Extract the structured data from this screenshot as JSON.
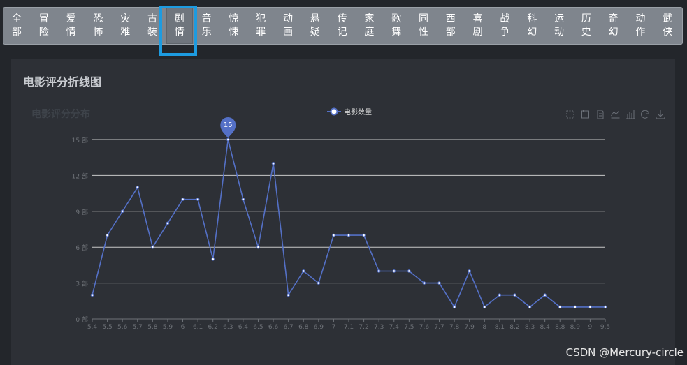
{
  "genres": [
    {
      "label": "全部"
    },
    {
      "label": "冒险"
    },
    {
      "label": "爱情"
    },
    {
      "label": "恐怖"
    },
    {
      "label": "灾难"
    },
    {
      "label": "古装"
    },
    {
      "label": "剧情",
      "active": true
    },
    {
      "label": "音乐"
    },
    {
      "label": "惊悚"
    },
    {
      "label": "犯罪"
    },
    {
      "label": "动画"
    },
    {
      "label": "悬疑"
    },
    {
      "label": "传记"
    },
    {
      "label": "家庭"
    },
    {
      "label": "歌舞"
    },
    {
      "label": "同性"
    },
    {
      "label": "西部"
    },
    {
      "label": "喜剧"
    },
    {
      "label": "战争"
    },
    {
      "label": "科幻"
    },
    {
      "label": "运动"
    },
    {
      "label": "历史"
    },
    {
      "label": "奇幻"
    },
    {
      "label": "动作"
    },
    {
      "label": "武侠"
    }
  ],
  "panel": {
    "title": "电影评分折线图"
  },
  "chart_data": {
    "type": "line",
    "title": "电影评分分布",
    "legend": {
      "label": "电影数量",
      "position": "top-center"
    },
    "x": [
      "5.4",
      "5.5",
      "5.6",
      "5.7",
      "5.8",
      "5.9",
      "6",
      "6.1",
      "6.2",
      "6.3",
      "6.4",
      "6.5",
      "6.6",
      "6.7",
      "6.8",
      "6.9",
      "7",
      "7.1",
      "7.2",
      "7.3",
      "7.4",
      "7.5",
      "7.6",
      "7.7",
      "7.8",
      "7.9",
      "8",
      "8.1",
      "8.2",
      "8.3",
      "8.4",
      "8.8",
      "8.9",
      "9",
      "9.5"
    ],
    "series": [
      {
        "name": "电影数量",
        "values": [
          2,
          7,
          9,
          11,
          6,
          8,
          10,
          10,
          5,
          15,
          10,
          6,
          13,
          2,
          4,
          3,
          7,
          7,
          7,
          4,
          4,
          4,
          3,
          3,
          1,
          4,
          1,
          2,
          2,
          1,
          2,
          1,
          1,
          1,
          1
        ]
      }
    ],
    "ylim": [
      0,
      15
    ],
    "yticks": [
      0,
      3,
      6,
      9,
      12,
      15
    ],
    "ytick_suffix": " 部",
    "max_marker": {
      "value": "15",
      "x": "6.3"
    },
    "grid": true,
    "line_color": "#5470c6",
    "toolbox_icons": [
      "select-rect-icon",
      "select-lasso-icon",
      "data-view-icon",
      "line-chart-icon",
      "bar-chart-icon",
      "restore-icon",
      "save-image-icon"
    ]
  },
  "watermark": "CSDN @Mercury-circle"
}
